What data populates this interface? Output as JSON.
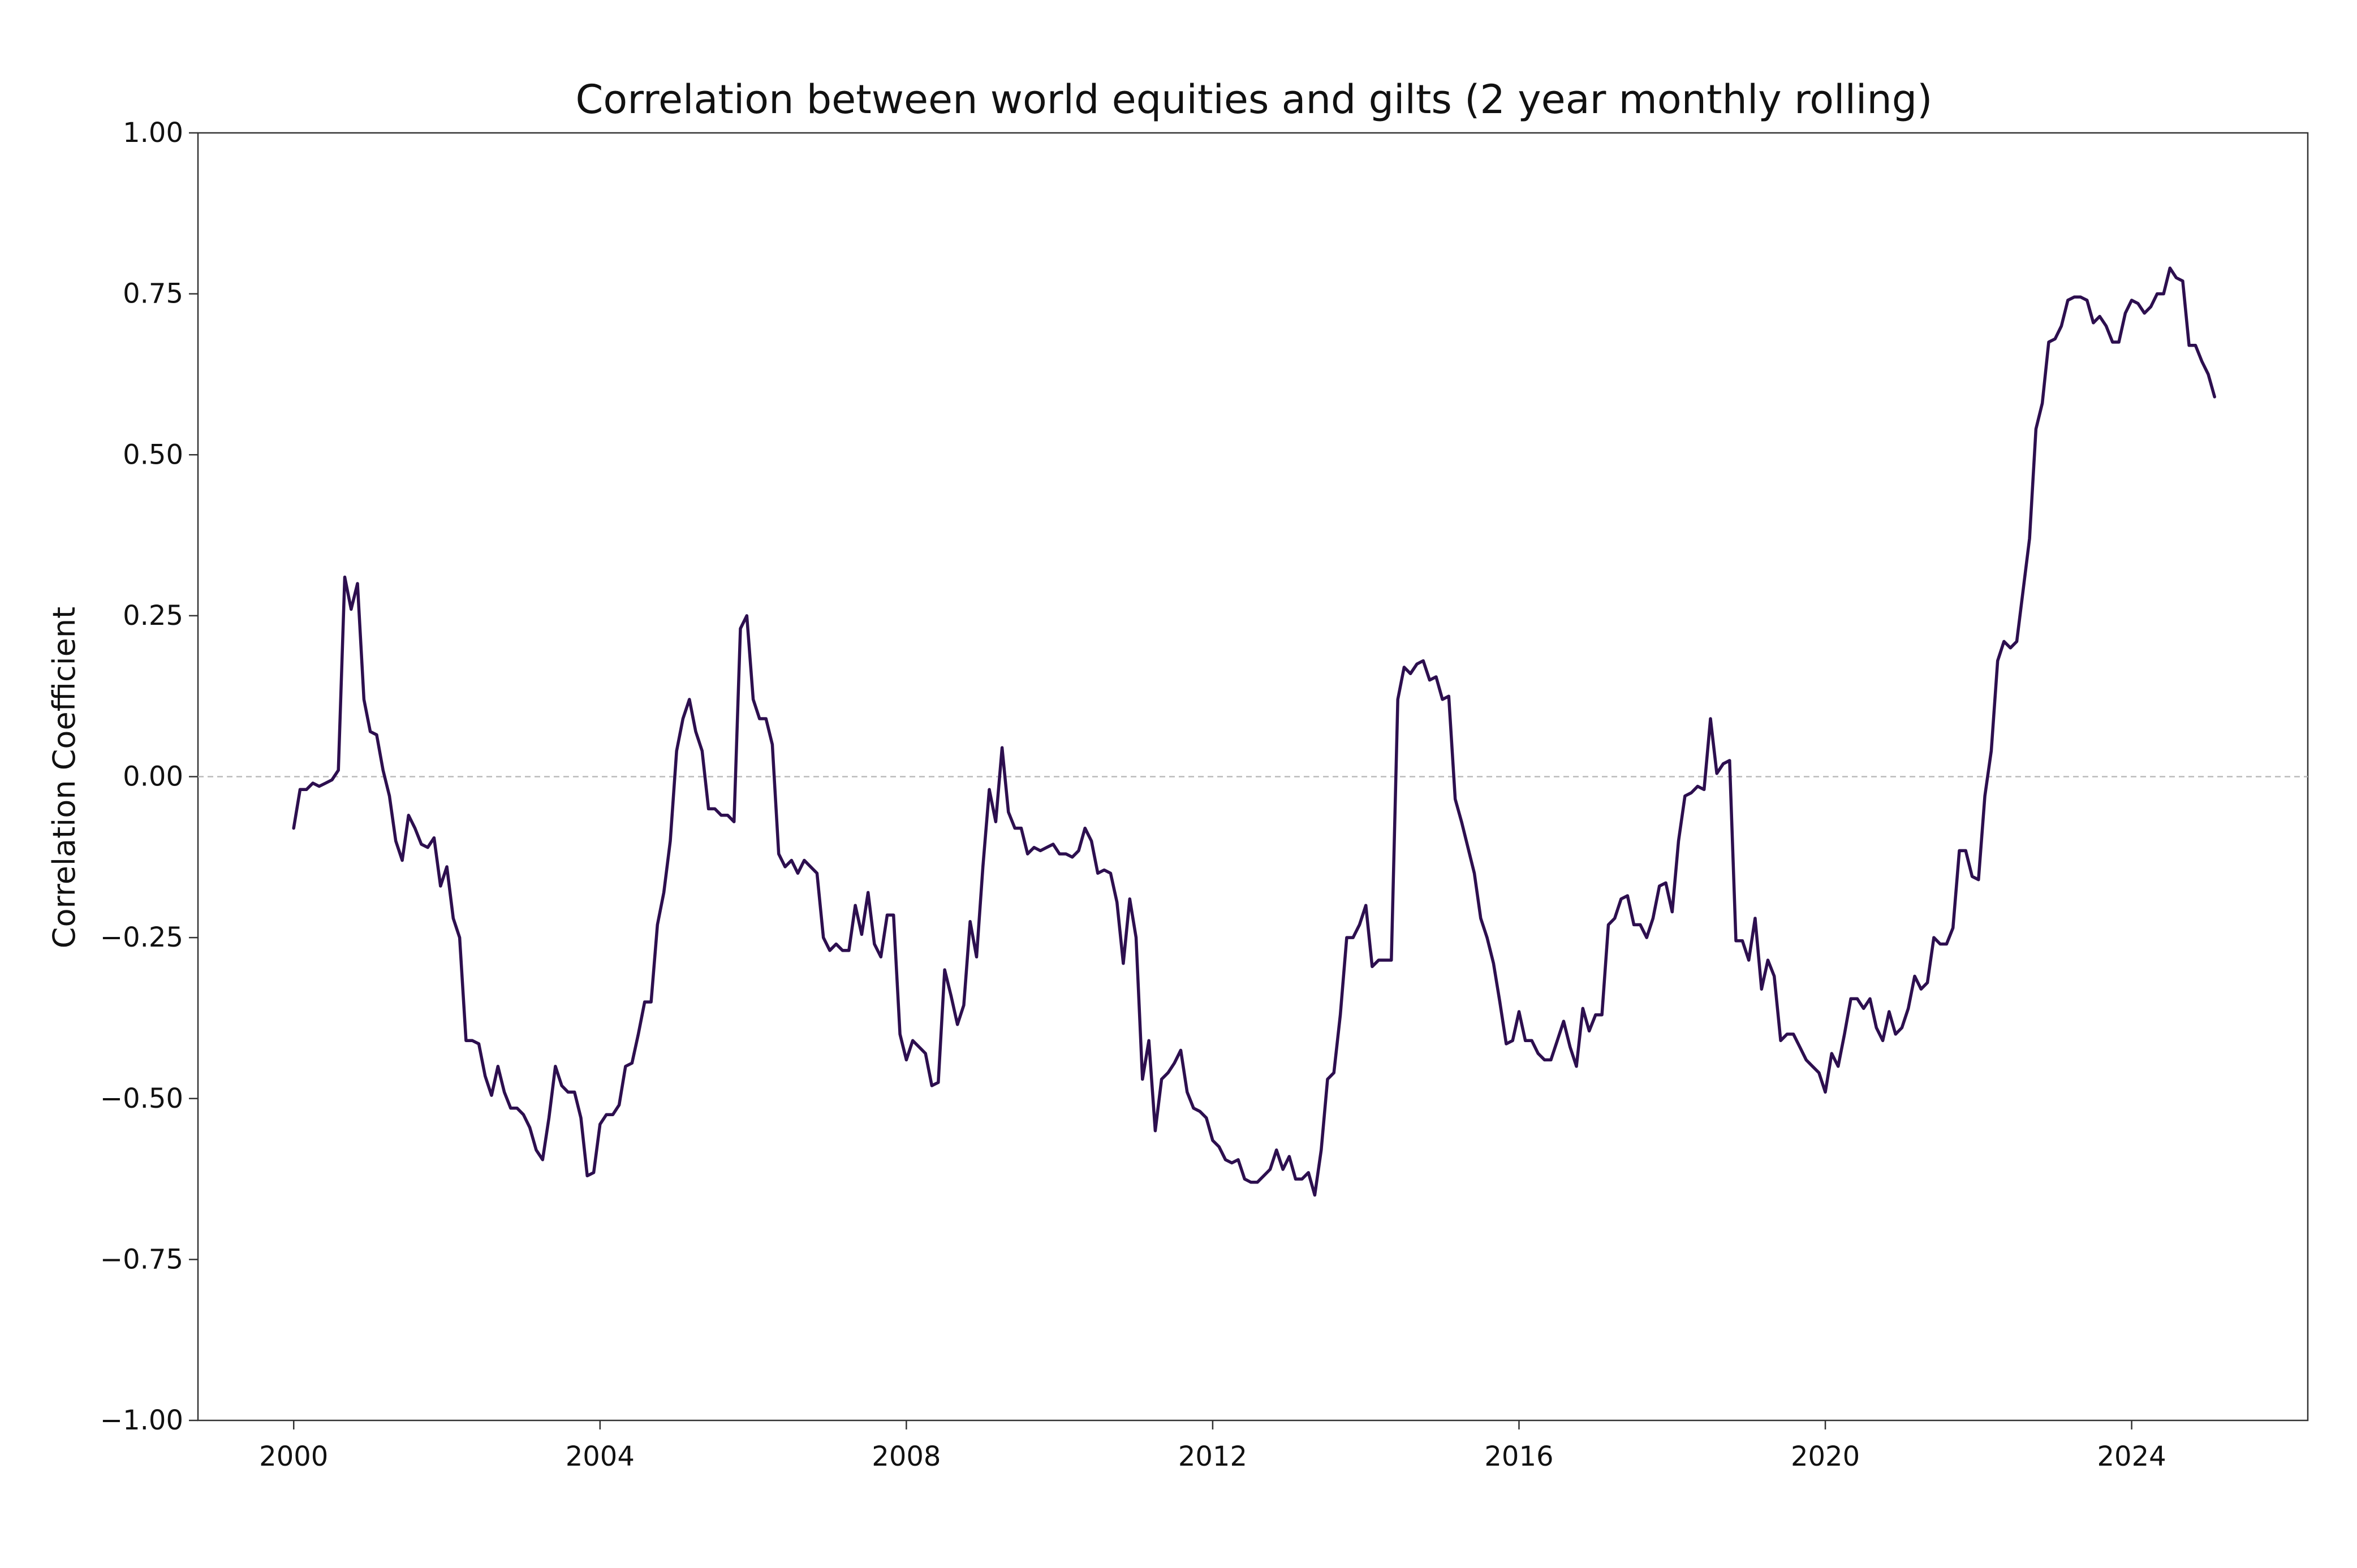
{
  "chart_data": {
    "type": "line",
    "title": "Correlation between world equities and gilts (2 year monthly rolling)",
    "xlabel": "",
    "ylabel": "Correlation Coefficient",
    "xlim": [
      1998.75,
      2026.3
    ],
    "ylim": [
      -1.0,
      1.0
    ],
    "x_ticks": [
      2000,
      2004,
      2008,
      2012,
      2016,
      2020,
      2024
    ],
    "x_tick_labels": [
      "2000",
      "2004",
      "2008",
      "2012",
      "2016",
      "2020",
      "2024"
    ],
    "y_ticks": [
      -1.0,
      -0.75,
      -0.5,
      -0.25,
      0.0,
      0.25,
      0.5,
      0.75,
      1.0
    ],
    "y_tick_labels": [
      "−1.00",
      "−0.75",
      "−0.50",
      "−0.25",
      "0.00",
      "0.25",
      "0.50",
      "0.75",
      "1.00"
    ],
    "grid": false,
    "reference_line": {
      "y": 0.0,
      "style": "dashed"
    },
    "colors": {
      "line": "#2d0f4f",
      "axis": "#333333",
      "reference": "#bbbbbb"
    },
    "series": [
      {
        "x": [
          2000.0,
          2000.083,
          2000.167,
          2000.25,
          2000.333,
          2000.417,
          2000.5,
          2000.583,
          2000.667,
          2000.75,
          2000.833,
          2000.917,
          2001.0,
          2001.083,
          2001.167,
          2001.25,
          2001.333,
          2001.417,
          2001.5,
          2001.583,
          2001.667,
          2001.75,
          2001.833,
          2001.917,
          2002.0,
          2002.083,
          2002.167,
          2002.25,
          2002.333,
          2002.417,
          2002.5,
          2002.583,
          2002.667,
          2002.75,
          2002.833,
          2002.917,
          2003.0,
          2003.083,
          2003.167,
          2003.25,
          2003.333,
          2003.417,
          2003.5,
          2003.583,
          2003.667,
          2003.75,
          2003.833,
          2003.917,
          2004.0,
          2004.083,
          2004.167,
          2004.25,
          2004.333,
          2004.417,
          2004.5,
          2004.583,
          2004.667,
          2004.75,
          2004.833,
          2004.917,
          2005.0,
          2005.083,
          2005.167,
          2005.25,
          2005.333,
          2005.417,
          2005.5,
          2005.583,
          2005.667,
          2005.75,
          2005.833,
          2005.917,
          2006.0,
          2006.083,
          2006.167,
          2006.25,
          2006.333,
          2006.417,
          2006.5,
          2006.583,
          2006.667,
          2006.75,
          2006.833,
          2006.917,
          2007.0,
          2007.083,
          2007.167,
          2007.25,
          2007.333,
          2007.417,
          2007.5,
          2007.583,
          2007.667,
          2007.75,
          2007.833,
          2007.917,
          2008.0,
          2008.083,
          2008.167,
          2008.25,
          2008.333,
          2008.417,
          2008.5,
          2008.583,
          2008.667,
          2008.75,
          2008.833,
          2008.917,
          2009.0,
          2009.083,
          2009.167,
          2009.25,
          2009.333,
          2009.417,
          2009.5,
          2009.583,
          2009.667,
          2009.75,
          2009.833,
          2009.917,
          2010.0,
          2010.083,
          2010.167,
          2010.25,
          2010.333,
          2010.417,
          2010.5,
          2010.583,
          2010.667,
          2010.75,
          2010.833,
          2010.917,
          2011.0,
          2011.083,
          2011.167,
          2011.25,
          2011.333,
          2011.417,
          2011.5,
          2011.583,
          2011.667,
          2011.75,
          2011.833,
          2011.917,
          2012.0,
          2012.083,
          2012.167,
          2012.25,
          2012.333,
          2012.417,
          2012.5,
          2012.583,
          2012.667,
          2012.75,
          2012.833,
          2012.917,
          2013.0,
          2013.083,
          2013.167,
          2013.25,
          2013.333,
          2013.417,
          2013.5,
          2013.583,
          2013.667,
          2013.75,
          2013.833,
          2013.917,
          2014.0,
          2014.083,
          2014.167,
          2014.25,
          2014.333,
          2014.417,
          2014.5,
          2014.583,
          2014.667,
          2014.75,
          2014.833,
          2014.917,
          2015.0,
          2015.083,
          2015.167,
          2015.25,
          2015.333,
          2015.417,
          2015.5,
          2015.583,
          2015.667,
          2015.75,
          2015.833,
          2015.917,
          2016.0,
          2016.083,
          2016.167,
          2016.25,
          2016.333,
          2016.417,
          2016.5,
          2016.583,
          2016.667,
          2016.75,
          2016.833,
          2016.917,
          2017.0,
          2017.083,
          2017.167,
          2017.25,
          2017.333,
          2017.417,
          2017.5,
          2017.583,
          2017.667,
          2017.75,
          2017.833,
          2017.917,
          2018.0,
          2018.083,
          2018.167,
          2018.25,
          2018.333,
          2018.417,
          2018.5,
          2018.583,
          2018.667,
          2018.75,
          2018.833,
          2018.917,
          2019.0,
          2019.083,
          2019.167,
          2019.25,
          2019.333,
          2019.417,
          2019.5,
          2019.583,
          2019.667,
          2019.75,
          2019.833,
          2019.917,
          2020.0,
          2020.083,
          2020.167,
          2020.25,
          2020.333,
          2020.417,
          2020.5,
          2020.583,
          2020.667,
          2020.75,
          2020.833,
          2020.917,
          2021.0,
          2021.083,
          2021.167,
          2021.25,
          2021.333,
          2021.417,
          2021.5,
          2021.583,
          2021.667,
          2021.75,
          2021.833,
          2021.917,
          2022.0,
          2022.083,
          2022.167,
          2022.25,
          2022.333,
          2022.417,
          2022.5,
          2022.583,
          2022.667,
          2022.75,
          2022.833,
          2022.917,
          2023.0,
          2023.083,
          2023.167,
          2023.25,
          2023.333,
          2023.417,
          2023.5,
          2023.583,
          2023.667,
          2023.75,
          2023.833,
          2023.917,
          2024.0,
          2024.083,
          2024.167,
          2024.25,
          2024.333,
          2024.417,
          2024.5,
          2024.583,
          2024.667,
          2024.75,
          2024.833,
          2024.917,
          2025.0,
          2025.083
        ],
        "y": [
          -0.08,
          -0.02,
          -0.02,
          -0.01,
          -0.015,
          -0.01,
          -0.005,
          0.01,
          0.31,
          0.26,
          0.3,
          0.12,
          0.07,
          0.065,
          0.01,
          -0.03,
          -0.1,
          -0.13,
          -0.06,
          -0.08,
          -0.105,
          -0.11,
          -0.095,
          -0.17,
          -0.14,
          -0.22,
          -0.25,
          -0.41,
          -0.41,
          -0.415,
          -0.465,
          -0.495,
          -0.45,
          -0.49,
          -0.515,
          -0.515,
          -0.525,
          -0.545,
          -0.58,
          -0.595,
          -0.53,
          -0.45,
          -0.48,
          -0.49,
          -0.49,
          -0.53,
          -0.62,
          -0.615,
          -0.54,
          -0.525,
          -0.525,
          -0.51,
          -0.45,
          -0.445,
          -0.4,
          -0.35,
          -0.35,
          -0.23,
          -0.18,
          -0.1,
          0.04,
          0.09,
          0.12,
          0.07,
          0.04,
          -0.05,
          -0.05,
          -0.06,
          -0.06,
          -0.07,
          0.23,
          0.25,
          0.12,
          0.09,
          0.09,
          0.05,
          -0.12,
          -0.14,
          -0.13,
          -0.15,
          -0.13,
          -0.14,
          -0.15,
          -0.25,
          -0.27,
          -0.26,
          -0.27,
          -0.27,
          -0.2,
          -0.245,
          -0.18,
          -0.26,
          -0.28,
          -0.215,
          -0.215,
          -0.4,
          -0.44,
          -0.41,
          -0.42,
          -0.43,
          -0.48,
          -0.475,
          -0.3,
          -0.34,
          -0.385,
          -0.355,
          -0.225,
          -0.28,
          -0.14,
          -0.02,
          -0.07,
          0.045,
          -0.055,
          -0.08,
          -0.08,
          -0.12,
          -0.11,
          -0.115,
          -0.11,
          -0.105,
          -0.12,
          -0.12,
          -0.125,
          -0.115,
          -0.08,
          -0.1,
          -0.15,
          -0.145,
          -0.15,
          -0.195,
          -0.29,
          -0.19,
          -0.25,
          -0.47,
          -0.41,
          -0.55,
          -0.47,
          -0.46,
          -0.445,
          -0.425,
          -0.49,
          -0.515,
          -0.52,
          -0.53,
          -0.565,
          -0.575,
          -0.595,
          -0.6,
          -0.595,
          -0.625,
          -0.63,
          -0.63,
          -0.62,
          -0.61,
          -0.58,
          -0.61,
          -0.59,
          -0.625,
          -0.625,
          -0.615,
          -0.65,
          -0.58,
          -0.47,
          -0.46,
          -0.37,
          -0.25,
          -0.25,
          -0.23,
          -0.2,
          -0.295,
          -0.285,
          -0.285,
          -0.285,
          0.12,
          0.17,
          0.16,
          0.175,
          0.18,
          0.15,
          0.155,
          0.12,
          0.125,
          -0.035,
          -0.07,
          -0.11,
          -0.15,
          -0.22,
          -0.25,
          -0.29,
          -0.35,
          -0.415,
          -0.41,
          -0.365,
          -0.41,
          -0.41,
          -0.43,
          -0.44,
          -0.44,
          -0.41,
          -0.38,
          -0.42,
          -0.45,
          -0.36,
          -0.395,
          -0.37,
          -0.37,
          -0.23,
          -0.22,
          -0.19,
          -0.185,
          -0.23,
          -0.23,
          -0.25,
          -0.22,
          -0.17,
          -0.165,
          -0.21,
          -0.1,
          -0.03,
          -0.025,
          -0.015,
          -0.02,
          0.09,
          0.005,
          0.02,
          0.025,
          -0.255,
          -0.255,
          -0.285,
          -0.22,
          -0.33,
          -0.285,
          -0.31,
          -0.41,
          -0.4,
          -0.4,
          -0.42,
          -0.44,
          -0.45,
          -0.46,
          -0.49,
          -0.43,
          -0.45,
          -0.4,
          -0.345,
          -0.345,
          -0.36,
          -0.345,
          -0.39,
          -0.41,
          -0.365,
          -0.4,
          -0.39,
          -0.36,
          -0.31,
          -0.33,
          -0.32,
          -0.25,
          -0.26,
          -0.26,
          -0.235,
          -0.115,
          -0.115,
          -0.155,
          -0.16,
          -0.03,
          0.04,
          0.18,
          0.21,
          0.2,
          0.21,
          0.29,
          0.37,
          0.54,
          0.58,
          0.675,
          0.68,
          0.7,
          0.74,
          0.745,
          0.745,
          0.74,
          0.705,
          0.715,
          0.7,
          0.675,
          0.675,
          0.72,
          0.74,
          0.735,
          0.72,
          0.73,
          0.75,
          0.75,
          0.79,
          0.775,
          0.77,
          0.67,
          0.67,
          0.645,
          0.625,
          0.59
        ]
      }
    ]
  }
}
